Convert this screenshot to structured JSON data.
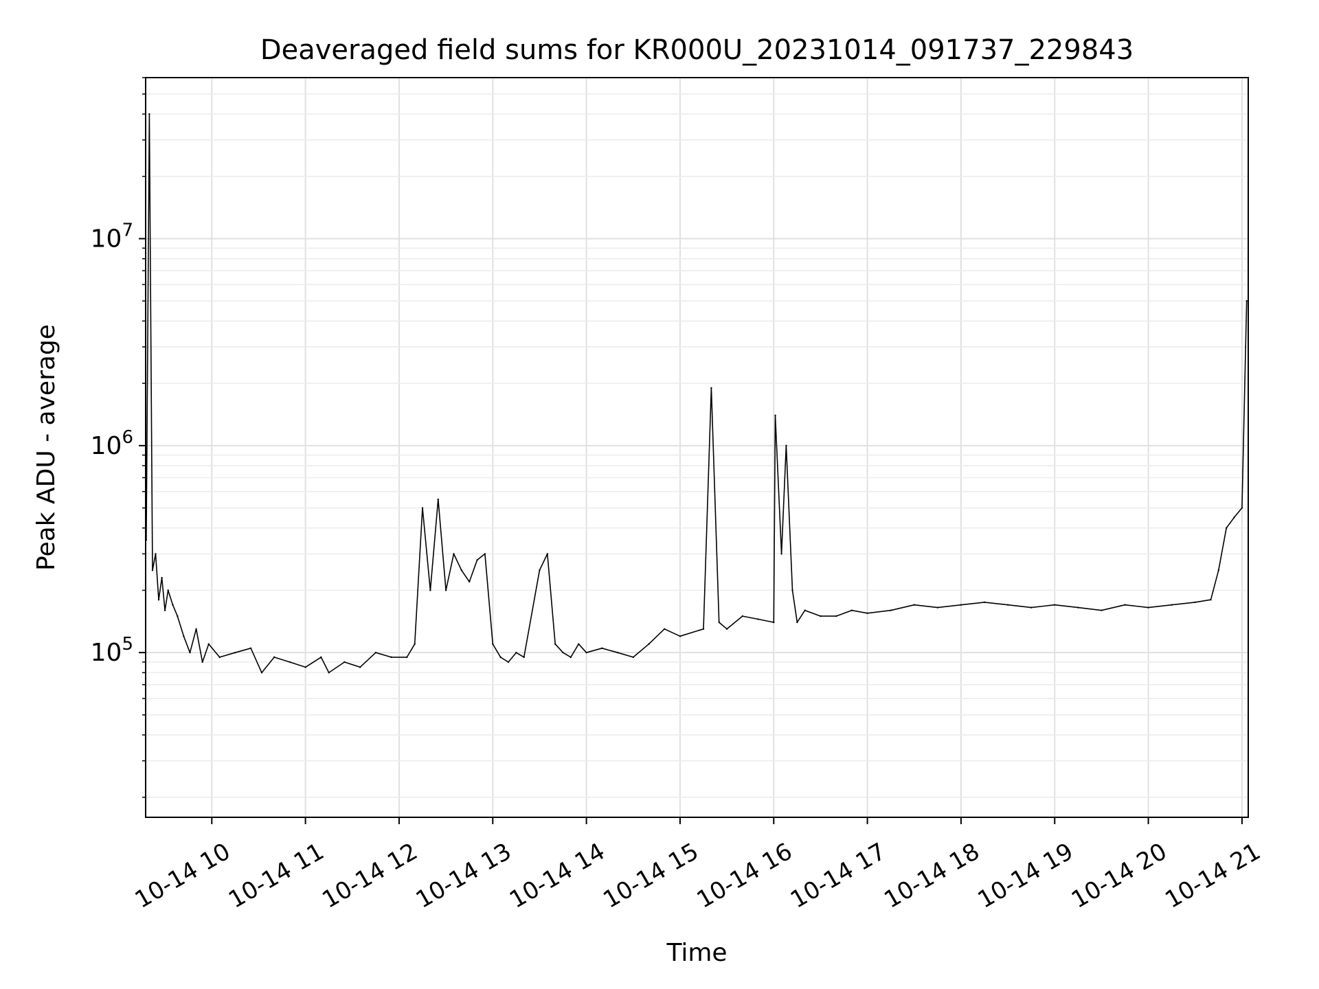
{
  "chart_data": {
    "type": "line",
    "title": "Deaveraged field sums for KR000U_20231014_091737_229843",
    "xlabel": "Time",
    "ylabel": "Peak ADU - average",
    "yscale": "log",
    "xlim": [
      "2023-10-14T09:17:37",
      "2023-10-14T21:04:00"
    ],
    "ylim": [
      16000,
      60000000
    ],
    "grid": true,
    "line_color": "#000000",
    "x_ticks": [
      {
        "x": "2023-10-14T10:00",
        "label": "10-14 10"
      },
      {
        "x": "2023-10-14T11:00",
        "label": "10-14 11"
      },
      {
        "x": "2023-10-14T12:00",
        "label": "10-14 12"
      },
      {
        "x": "2023-10-14T13:00",
        "label": "10-14 13"
      },
      {
        "x": "2023-10-14T14:00",
        "label": "10-14 14"
      },
      {
        "x": "2023-10-14T15:00",
        "label": "10-14 15"
      },
      {
        "x": "2023-10-14T16:00",
        "label": "10-14 16"
      },
      {
        "x": "2023-10-14T17:00",
        "label": "10-14 17"
      },
      {
        "x": "2023-10-14T18:00",
        "label": "10-14 18"
      },
      {
        "x": "2023-10-14T19:00",
        "label": "10-14 19"
      },
      {
        "x": "2023-10-14T20:00",
        "label": "10-14 20"
      },
      {
        "x": "2023-10-14T21:00",
        "label": "10-14 21"
      }
    ],
    "y_ticks": [
      {
        "y": 100000,
        "base": "10",
        "exp": "5"
      },
      {
        "y": 1000000,
        "base": "10",
        "exp": "6"
      },
      {
        "y": 10000000,
        "base": "10",
        "exp": "7"
      }
    ],
    "series": [
      {
        "x": [
          "2023-10-14T09:18",
          "2023-10-14T09:20",
          "2023-10-14T09:22",
          "2023-10-14T09:24",
          "2023-10-14T09:26",
          "2023-10-14T09:28",
          "2023-10-14T09:30",
          "2023-10-14T09:32",
          "2023-10-14T09:35",
          "2023-10-14T09:38",
          "2023-10-14T09:42",
          "2023-10-14T09:46",
          "2023-10-14T09:50",
          "2023-10-14T09:54",
          "2023-10-14T09:58",
          "2023-10-14T10:05",
          "2023-10-14T10:15",
          "2023-10-14T10:25",
          "2023-10-14T10:32",
          "2023-10-14T10:40",
          "2023-10-14T10:50",
          "2023-10-14T11:00",
          "2023-10-14T11:10",
          "2023-10-14T11:15",
          "2023-10-14T11:25",
          "2023-10-14T11:35",
          "2023-10-14T11:45",
          "2023-10-14T11:55",
          "2023-10-14T12:05",
          "2023-10-14T12:10",
          "2023-10-14T12:15",
          "2023-10-14T12:20",
          "2023-10-14T12:25",
          "2023-10-14T12:30",
          "2023-10-14T12:35",
          "2023-10-14T12:40",
          "2023-10-14T12:45",
          "2023-10-14T12:50",
          "2023-10-14T12:55",
          "2023-10-14T13:00",
          "2023-10-14T13:05",
          "2023-10-14T13:10",
          "2023-10-14T13:15",
          "2023-10-14T13:20",
          "2023-10-14T13:30",
          "2023-10-14T13:35",
          "2023-10-14T13:40",
          "2023-10-14T13:45",
          "2023-10-14T13:50",
          "2023-10-14T13:55",
          "2023-10-14T14:00",
          "2023-10-14T14:10",
          "2023-10-14T14:20",
          "2023-10-14T14:30",
          "2023-10-14T14:40",
          "2023-10-14T14:50",
          "2023-10-14T15:00",
          "2023-10-14T15:15",
          "2023-10-14T15:20",
          "2023-10-14T15:25",
          "2023-10-14T15:30",
          "2023-10-14T15:40",
          "2023-10-14T15:50",
          "2023-10-14T16:00",
          "2023-10-14T16:01",
          "2023-10-14T16:05",
          "2023-10-14T16:08",
          "2023-10-14T16:12",
          "2023-10-14T16:15",
          "2023-10-14T16:20",
          "2023-10-14T16:30",
          "2023-10-14T16:40",
          "2023-10-14T16:50",
          "2023-10-14T17:00",
          "2023-10-14T17:15",
          "2023-10-14T17:30",
          "2023-10-14T17:45",
          "2023-10-14T18:00",
          "2023-10-14T18:15",
          "2023-10-14T18:30",
          "2023-10-14T18:45",
          "2023-10-14T19:00",
          "2023-10-14T19:15",
          "2023-10-14T19:30",
          "2023-10-14T19:45",
          "2023-10-14T20:00",
          "2023-10-14T20:15",
          "2023-10-14T20:30",
          "2023-10-14T20:40",
          "2023-10-14T20:45",
          "2023-10-14T20:50",
          "2023-10-14T20:55",
          "2023-10-14T21:00",
          "2023-10-14T21:03"
        ],
        "y": [
          350000,
          40000000,
          250000,
          300000,
          180000,
          230000,
          160000,
          200000,
          170000,
          150000,
          120000,
          100000,
          130000,
          90000,
          110000,
          95000,
          100000,
          105000,
          80000,
          95000,
          90000,
          85000,
          95000,
          80000,
          90000,
          85000,
          100000,
          95000,
          95000,
          110000,
          500000,
          200000,
          550000,
          200000,
          300000,
          250000,
          220000,
          280000,
          300000,
          110000,
          95000,
          90000,
          100000,
          95000,
          250000,
          300000,
          110000,
          100000,
          95000,
          110000,
          100000,
          105000,
          100000,
          95000,
          110000,
          130000,
          120000,
          130000,
          1900000,
          140000,
          130000,
          150000,
          145000,
          140000,
          1400000,
          300000,
          1000000,
          200000,
          140000,
          160000,
          150000,
          150000,
          160000,
          155000,
          160000,
          170000,
          165000,
          170000,
          175000,
          170000,
          165000,
          170000,
          165000,
          160000,
          170000,
          165000,
          170000,
          175000,
          180000,
          250000,
          400000,
          450000,
          500000,
          5000000
        ]
      }
    ]
  }
}
